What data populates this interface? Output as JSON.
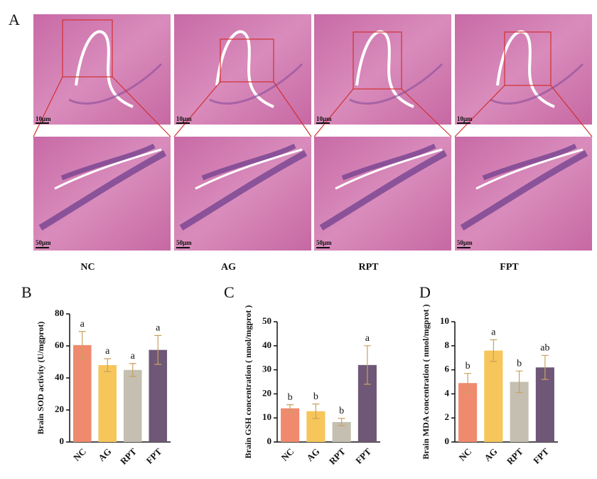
{
  "panel_a": {
    "label": "A",
    "images": [
      {
        "group": "NC",
        "top_scale": "10μm",
        "bottom_scale": "50μm"
      },
      {
        "group": "AG",
        "top_scale": "10μm",
        "bottom_scale": "50μm"
      },
      {
        "group": "RPT",
        "top_scale": "10μm",
        "bottom_scale": "50μm"
      },
      {
        "group": "FPT",
        "top_scale": "10μm",
        "bottom_scale": "50μm"
      }
    ]
  },
  "chart_data": [
    {
      "type": "bar",
      "panel_label": "B",
      "ylabel": "Brain SOD activity (U/mgprot)",
      "categories": [
        "NC",
        "AG",
        "RPT",
        "FPT"
      ],
      "values": [
        60.5,
        48,
        45,
        57.5
      ],
      "errors": [
        8.5,
        4,
        4,
        9
      ],
      "annotations": [
        "a",
        "a",
        "a",
        "a"
      ],
      "colors": [
        "#f08a6e",
        "#f6c65a",
        "#c4bfb0",
        "#6f5777"
      ],
      "ylim": [
        0,
        80
      ],
      "yticks": [
        0,
        20,
        40,
        60,
        80
      ]
    },
    {
      "type": "bar",
      "panel_label": "C",
      "ylabel": "Brain GSH concentration ( nmol/mgprot )",
      "categories": [
        "NC",
        "AG",
        "RPT",
        "FPT"
      ],
      "values": [
        14,
        12.8,
        8.3,
        32
      ],
      "errors": [
        1.5,
        3,
        1.5,
        8
      ],
      "annotations": [
        "b",
        "b",
        "b",
        "a"
      ],
      "colors": [
        "#f08a6e",
        "#f6c65a",
        "#c4bfb0",
        "#6f5777"
      ],
      "ylim": [
        0,
        50
      ],
      "yticks": [
        0,
        10,
        20,
        30,
        40,
        50
      ]
    },
    {
      "type": "bar",
      "panel_label": "D",
      "ylabel": "Brain MDA concentration ( nmol/mgprot )",
      "categories": [
        "NC",
        "AG",
        "RPT",
        "FPT"
      ],
      "values": [
        4.9,
        7.6,
        5.0,
        6.2
      ],
      "errors": [
        0.8,
        0.9,
        0.9,
        1.0
      ],
      "annotations": [
        "b",
        "a",
        "b",
        "ab"
      ],
      "colors": [
        "#f08a6e",
        "#f6c65a",
        "#c4bfb0",
        "#6f5777"
      ],
      "ylim": [
        0,
        10
      ],
      "yticks": [
        0,
        2,
        4,
        6,
        8,
        10
      ]
    }
  ]
}
